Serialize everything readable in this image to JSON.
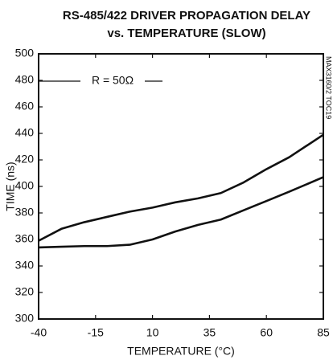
{
  "chart_data": {
    "type": "line",
    "title": "RS-485/422 DRIVER PROPAGATION DELAY",
    "subtitle": "vs. TEMPERATURE (SLOW)",
    "x_label": "TEMPERATURE (°C)",
    "y_label": "TIME (ns)",
    "annotations": [
      "R = 50Ω",
      "MAX3160/2 TOC19"
    ],
    "x": [
      -40,
      -30,
      -20,
      -10,
      0,
      10,
      20,
      30,
      40,
      50,
      60,
      70,
      85
    ],
    "series": [
      {
        "color": "#111111",
        "values": [
          359,
          368,
          373,
          377,
          381,
          384,
          388,
          391,
          395,
          403,
          413,
          422,
          439
        ]
      },
      {
        "color": "#111111",
        "values": [
          354,
          354.5,
          355,
          355,
          356,
          360,
          366,
          371,
          375,
          382,
          389,
          396,
          407
        ]
      }
    ],
    "xlim": [
      -40,
      85
    ],
    "xticks": [
      -40,
      -15,
      10,
      35,
      60,
      85
    ],
    "ylim": [
      300,
      500
    ],
    "yticks": [
      300,
      320,
      340,
      360,
      380,
      400,
      420,
      440,
      460,
      480,
      500
    ],
    "grid": false
  }
}
